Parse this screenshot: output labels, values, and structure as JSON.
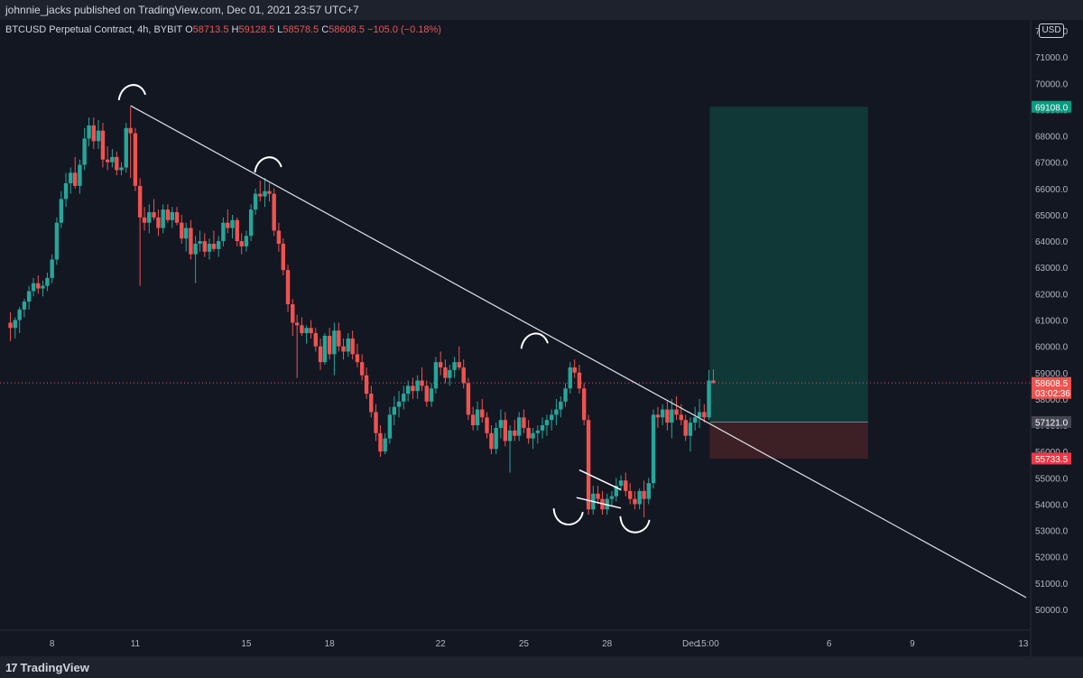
{
  "header": {
    "published_text": "johnnie_jacks published on TradingView.com, Dec 01, 2021 23:57 UTC+7"
  },
  "legend": {
    "symbol": "BTCUSD Perpetual Contract, 4h, BYBIT",
    "open_key": "O",
    "open": "58713.5",
    "high_key": "H",
    "high": "59128.5",
    "low_key": "L",
    "low": "58578.5",
    "close_key": "C",
    "close": "58608.5",
    "change": "−105.0 (−0.18%)"
  },
  "currency_button": "USD",
  "footer": {
    "logo_mark": "17",
    "logo_text": "TradingView"
  },
  "colors": {
    "background": "#131722",
    "up": "#26a69a",
    "down": "#ef5350",
    "target_zone": "#0f3836",
    "stop_zone": "#3d2026",
    "label_target": "#089981",
    "label_stop": "#f23645",
    "label_entry": "#434651"
  },
  "chart_data": {
    "type": "candlestick",
    "symbol": "BTCUSD",
    "interval": "4h",
    "exchange": "BYBIT",
    "ylim": [
      49500,
      72200
    ],
    "y_ticks": [
      50000,
      51000,
      52000,
      53000,
      54000,
      55000,
      56000,
      57000,
      58000,
      59000,
      60000,
      61000,
      62000,
      63000,
      64000,
      65000,
      66000,
      67000,
      68000,
      69000,
      70000,
      71000,
      72000
    ],
    "y_tick_labels": [
      "50000.0",
      "51000.0",
      "52000.0",
      "53000.0",
      "54000.0",
      "55000.0",
      "56000.0",
      "57000.0",
      "58000.0",
      "59000.0",
      "60000.0",
      "61000.0",
      "62000.0",
      "63000.0",
      "64000.0",
      "65000.0",
      "66000.0",
      "67000.0",
      "68000.0",
      "69000.0",
      "70000.0",
      "71000.0",
      "72000.0"
    ],
    "x_tick_labels": [
      "8",
      "11",
      "15",
      "18",
      "22",
      "25",
      "28",
      "Dec",
      "15:00",
      "6",
      "9",
      "13"
    ],
    "x_tick_days": [
      8,
      11,
      15,
      18,
      22,
      25,
      28,
      31,
      31.625,
      36,
      39,
      43
    ],
    "x_day_range": [
      6.45,
      43.1
    ],
    "last_price": "58608.5",
    "last_price_value": 58608.5,
    "countdown": "03:02:36",
    "position": {
      "entry": 57121.0,
      "entry_label": "57121.0",
      "target": 69108.0,
      "target_label": "69108.0",
      "stop": 55733.5,
      "stop_label": "55733.5",
      "start_day": 31.7,
      "end_day": 37.4
    },
    "trendline": {
      "start": [
        10.83,
        69150
      ],
      "end": [
        43.1,
        50450
      ]
    },
    "pattern_markers": [
      {
        "shape": "arc-down",
        "day": 10.9,
        "value": 69800
      },
      {
        "shape": "arc-down",
        "day": 15.8,
        "value": 67050
      },
      {
        "shape": "arc-down",
        "day": 25.4,
        "value": 60350
      },
      {
        "shape": "arc-up",
        "day": 26.6,
        "value": 53400
      },
      {
        "shape": "arc-up",
        "day": 29.0,
        "value": 53100
      }
    ],
    "wedge": {
      "upper": [
        [
          27.0,
          55300
        ],
        [
          28.5,
          54550
        ]
      ],
      "lower": [
        [
          26.9,
          54250
        ],
        [
          28.5,
          53850
        ]
      ]
    },
    "candles": [
      [
        6.5,
        60900,
        61300,
        60200,
        60700
      ],
      [
        6.67,
        60700,
        61100,
        60300,
        61000
      ],
      [
        6.83,
        61000,
        61500,
        60500,
        61400
      ],
      [
        7.0,
        61400,
        61800,
        61100,
        61700
      ],
      [
        7.17,
        61700,
        62300,
        61400,
        62100
      ],
      [
        7.33,
        62100,
        62600,
        61900,
        62400
      ],
      [
        7.5,
        62400,
        62700,
        62000,
        62200
      ],
      [
        7.67,
        62200,
        62500,
        61900,
        62300
      ],
      [
        7.83,
        62300,
        62800,
        62100,
        62600
      ],
      [
        8.0,
        62600,
        63500,
        62400,
        63300
      ],
      [
        8.17,
        63300,
        64900,
        63100,
        64700
      ],
      [
        8.33,
        64700,
        65900,
        64500,
        65600
      ],
      [
        8.5,
        65600,
        66600,
        65300,
        66200
      ],
      [
        8.67,
        66200,
        66800,
        65800,
        66600
      ],
      [
        8.83,
        66600,
        67200,
        66000,
        66100
      ],
      [
        9.0,
        66100,
        67100,
        65800,
        66900
      ],
      [
        9.17,
        66900,
        68300,
        66700,
        67900
      ],
      [
        9.33,
        67900,
        68700,
        67600,
        68400
      ],
      [
        9.5,
        68400,
        68700,
        67500,
        67800
      ],
      [
        9.67,
        67800,
        68600,
        67500,
        68200
      ],
      [
        9.83,
        68200,
        68500,
        66800,
        67100
      ],
      [
        10.0,
        67100,
        67600,
        66700,
        67000
      ],
      [
        10.17,
        67000,
        67500,
        66800,
        67200
      ],
      [
        10.33,
        67200,
        67400,
        66500,
        66700
      ],
      [
        10.5,
        66700,
        67000,
        66500,
        66800
      ],
      [
        10.67,
        66800,
        68500,
        66600,
        68300
      ],
      [
        10.83,
        68300,
        69100,
        66400,
        68100
      ],
      [
        11.0,
        68100,
        68300,
        65900,
        66100
      ],
      [
        11.17,
        66100,
        66400,
        62300,
        64900
      ],
      [
        11.33,
        64900,
        65300,
        64400,
        64700
      ],
      [
        11.5,
        64700,
        65400,
        64300,
        65100
      ],
      [
        11.67,
        65100,
        65600,
        64800,
        64900
      ],
      [
        11.83,
        64900,
        65200,
        64200,
        64500
      ],
      [
        12.0,
        64500,
        65400,
        64300,
        65200
      ],
      [
        12.17,
        65200,
        65400,
        64700,
        64800
      ],
      [
        12.33,
        64800,
        65300,
        64500,
        65100
      ],
      [
        12.5,
        65100,
        65300,
        64600,
        64700
      ],
      [
        12.67,
        64700,
        65000,
        63900,
        64100
      ],
      [
        12.83,
        64100,
        64700,
        63600,
        64500
      ],
      [
        13.0,
        64500,
        64800,
        63300,
        63500
      ],
      [
        13.17,
        63500,
        64200,
        62400,
        63900
      ],
      [
        13.33,
        63900,
        64400,
        63600,
        64000
      ],
      [
        13.5,
        64000,
        64300,
        63400,
        63600
      ],
      [
        13.67,
        63600,
        64100,
        63300,
        63900
      ],
      [
        13.83,
        63900,
        64400,
        63600,
        63700
      ],
      [
        14.0,
        63700,
        64200,
        63400,
        64000
      ],
      [
        14.17,
        64000,
        64900,
        63800,
        64700
      ],
      [
        14.33,
        64700,
        65200,
        64300,
        64500
      ],
      [
        14.5,
        64500,
        65000,
        64100,
        64800
      ],
      [
        14.67,
        64800,
        64900,
        63800,
        64000
      ],
      [
        14.83,
        64000,
        64300,
        63500,
        63800
      ],
      [
        15.0,
        63800,
        64400,
        63600,
        64200
      ],
      [
        15.17,
        64200,
        65400,
        64000,
        65200
      ],
      [
        15.33,
        65200,
        66000,
        65000,
        65800
      ],
      [
        15.5,
        65800,
        66300,
        65500,
        65700
      ],
      [
        15.67,
        65700,
        66400,
        65300,
        65900
      ],
      [
        15.83,
        65900,
        66200,
        65500,
        65800
      ],
      [
        16.0,
        65800,
        66000,
        64200,
        64400
      ],
      [
        16.17,
        64400,
        64700,
        63600,
        63900
      ],
      [
        16.33,
        63900,
        64100,
        62700,
        62900
      ],
      [
        16.5,
        62900,
        63100,
        61300,
        61600
      ],
      [
        16.67,
        61600,
        61800,
        60400,
        60900
      ],
      [
        16.83,
        60900,
        61200,
        58800,
        60800
      ],
      [
        17.0,
        60800,
        61100,
        60400,
        60500
      ],
      [
        17.17,
        60500,
        60800,
        60100,
        60700
      ],
      [
        17.33,
        60700,
        61000,
        60300,
        60500
      ],
      [
        17.5,
        60500,
        60700,
        59800,
        60000
      ],
      [
        17.67,
        60000,
        60300,
        59100,
        59400
      ],
      [
        17.83,
        59400,
        60500,
        59300,
        60400
      ],
      [
        18.0,
        60400,
        60700,
        59500,
        59700
      ],
      [
        18.17,
        59700,
        60900,
        58900,
        60600
      ],
      [
        18.33,
        60600,
        60900,
        59800,
        60000
      ],
      [
        18.5,
        60000,
        60300,
        59500,
        59800
      ],
      [
        18.67,
        59800,
        60500,
        59600,
        60300
      ],
      [
        18.83,
        60300,
        60600,
        59500,
        59700
      ],
      [
        19.0,
        59700,
        60100,
        59200,
        59400
      ],
      [
        19.17,
        59400,
        59700,
        58700,
        58900
      ],
      [
        19.33,
        58900,
        59200,
        58000,
        58200
      ],
      [
        19.5,
        58200,
        58500,
        57300,
        57500
      ],
      [
        19.67,
        57500,
        57800,
        56400,
        56700
      ],
      [
        19.83,
        56700,
        57000,
        55800,
        56000
      ],
      [
        20.0,
        56000,
        56700,
        55900,
        56500
      ],
      [
        20.17,
        56500,
        57700,
        56300,
        57400
      ],
      [
        20.33,
        57400,
        58100,
        57000,
        57700
      ],
      [
        20.5,
        57700,
        58300,
        57300,
        57900
      ],
      [
        20.67,
        57900,
        58500,
        57600,
        58200
      ],
      [
        20.83,
        58200,
        58700,
        57900,
        58500
      ],
      [
        21.0,
        58500,
        58800,
        58000,
        58300
      ],
      [
        21.17,
        58300,
        58900,
        58000,
        58700
      ],
      [
        21.33,
        58700,
        59200,
        58300,
        58500
      ],
      [
        21.5,
        58500,
        58700,
        57700,
        57900
      ],
      [
        21.67,
        57900,
        58600,
        57700,
        58400
      ],
      [
        21.83,
        58400,
        59600,
        58200,
        59400
      ],
      [
        22.0,
        59400,
        59800,
        58900,
        59200
      ],
      [
        22.17,
        59200,
        59500,
        58600,
        58800
      ],
      [
        22.33,
        58800,
        59300,
        58500,
        59100
      ],
      [
        22.5,
        59100,
        59600,
        58800,
        59400
      ],
      [
        22.67,
        59400,
        60000,
        59100,
        59200
      ],
      [
        22.83,
        59200,
        59500,
        58400,
        58600
      ],
      [
        23.0,
        58600,
        58800,
        57200,
        57400
      ],
      [
        23.17,
        57400,
        57700,
        56800,
        57000
      ],
      [
        23.33,
        57000,
        57900,
        56800,
        57600
      ],
      [
        23.5,
        57600,
        58000,
        57100,
        57300
      ],
      [
        23.67,
        57300,
        57500,
        56500,
        56700
      ],
      [
        23.83,
        56700,
        57000,
        55900,
        56100
      ],
      [
        24.0,
        56100,
        57100,
        55900,
        56900
      ],
      [
        24.17,
        56900,
        57600,
        56500,
        57200
      ],
      [
        24.33,
        57200,
        57500,
        56200,
        56400
      ],
      [
        24.5,
        56400,
        57000,
        55200,
        56800
      ],
      [
        24.67,
        56800,
        57200,
        56400,
        56600
      ],
      [
        24.83,
        56600,
        57500,
        56400,
        57300
      ],
      [
        25.0,
        57300,
        57600,
        56700,
        56900
      ],
      [
        25.17,
        56900,
        57200,
        56300,
        56500
      ],
      [
        25.33,
        56500,
        56900,
        56100,
        56700
      ],
      [
        25.5,
        56700,
        57000,
        56300,
        56800
      ],
      [
        25.67,
        56800,
        57300,
        56500,
        57000
      ],
      [
        25.83,
        57000,
        57400,
        56600,
        57200
      ],
      [
        26.0,
        57200,
        57600,
        56800,
        57400
      ],
      [
        26.17,
        57400,
        58000,
        57000,
        57600
      ],
      [
        26.33,
        57600,
        58100,
        57300,
        57900
      ],
      [
        26.5,
        57900,
        58600,
        57700,
        58400
      ],
      [
        26.67,
        58400,
        59400,
        58200,
        59200
      ],
      [
        26.83,
        59200,
        59500,
        58800,
        59000
      ],
      [
        27.0,
        59000,
        59300,
        58200,
        58400
      ],
      [
        27.17,
        58400,
        58600,
        57000,
        57200
      ],
      [
        27.33,
        57200,
        57400,
        53600,
        53800
      ],
      [
        27.5,
        53800,
        54700,
        53600,
        54400
      ],
      [
        27.67,
        54400,
        54700,
        54000,
        54200
      ],
      [
        27.83,
        54200,
        54500,
        53600,
        53800
      ],
      [
        28.0,
        53800,
        54400,
        53600,
        54200
      ],
      [
        28.17,
        54200,
        54500,
        53900,
        54300
      ],
      [
        28.33,
        54300,
        55000,
        54100,
        54700
      ],
      [
        28.5,
        54700,
        55100,
        54500,
        54900
      ],
      [
        28.67,
        54900,
        55200,
        54300,
        54500
      ],
      [
        28.83,
        54500,
        54800,
        54000,
        54200
      ],
      [
        29.0,
        54200,
        54500,
        53800,
        54000
      ],
      [
        29.17,
        54000,
        54600,
        53800,
        54500
      ],
      [
        29.33,
        54500,
        54900,
        53500,
        54200
      ],
      [
        29.5,
        54200,
        55000,
        54000,
        54800
      ],
      [
        29.67,
        54800,
        57600,
        54600,
        57400
      ],
      [
        29.83,
        57400,
        57700,
        56900,
        57300
      ],
      [
        30.0,
        57300,
        57800,
        57000,
        57600
      ],
      [
        30.17,
        57600,
        57900,
        56800,
        57100
      ],
      [
        30.33,
        57100,
        58000,
        56500,
        57600
      ],
      [
        30.5,
        57600,
        58100,
        57200,
        57400
      ],
      [
        30.67,
        57400,
        57800,
        57000,
        57200
      ],
      [
        30.83,
        57200,
        57400,
        56400,
        56600
      ],
      [
        31.0,
        56600,
        57300,
        56000,
        57100
      ],
      [
        31.17,
        57100,
        57700,
        56800,
        57300
      ],
      [
        31.33,
        57300,
        58000,
        56900,
        57500
      ],
      [
        31.5,
        57500,
        57800,
        57100,
        57300
      ],
      [
        31.67,
        57300,
        59100,
        57200,
        58700
      ],
      [
        31.83,
        58700,
        59128,
        58578,
        58608
      ]
    ]
  }
}
